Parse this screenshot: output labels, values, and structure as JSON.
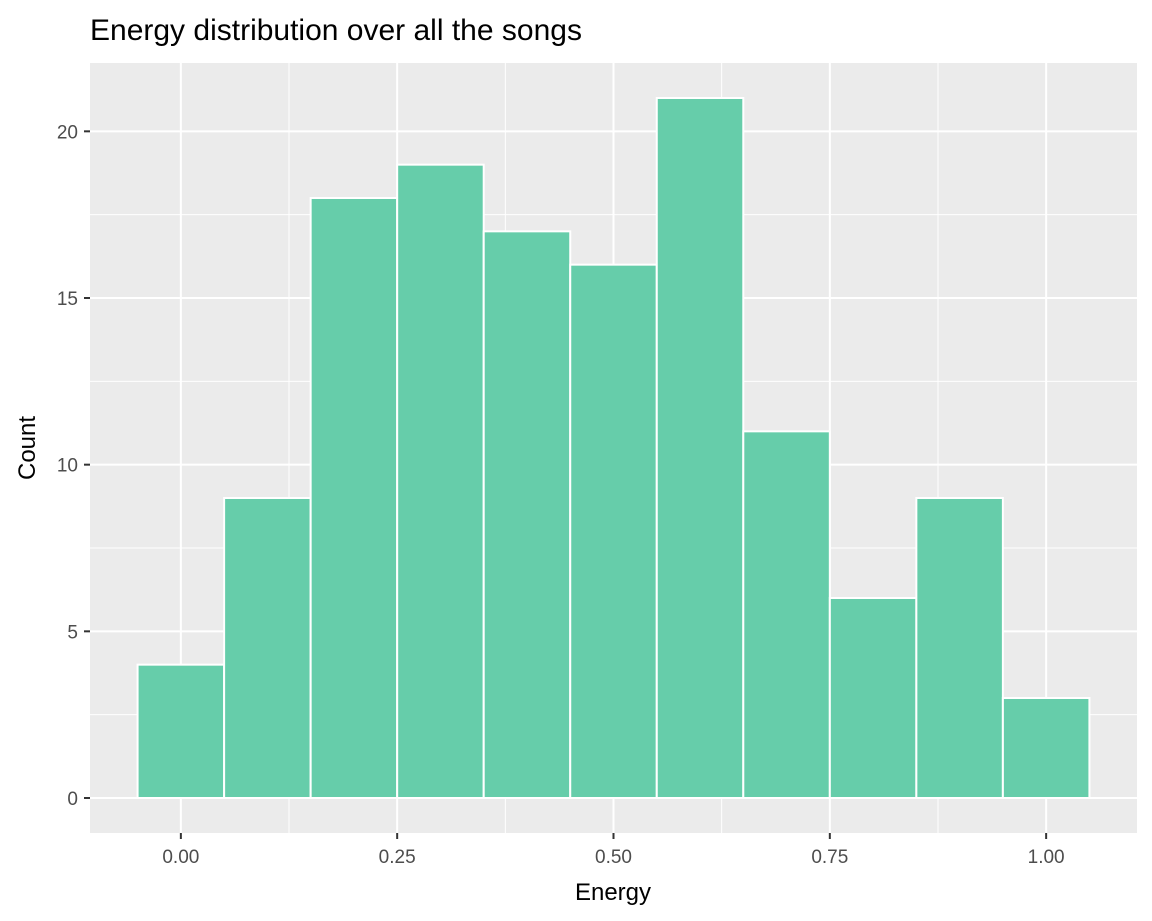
{
  "chart_data": {
    "type": "histogram",
    "title": "Energy distribution over all the songs",
    "xlabel": "Energy",
    "ylabel": "Count",
    "bin_width": 0.1,
    "bins": [
      {
        "start": -0.05,
        "end": 0.05,
        "count": 4
      },
      {
        "start": 0.05,
        "end": 0.15,
        "count": 9
      },
      {
        "start": 0.15,
        "end": 0.25,
        "count": 18
      },
      {
        "start": 0.25,
        "end": 0.35,
        "count": 19
      },
      {
        "start": 0.35,
        "end": 0.45,
        "count": 17
      },
      {
        "start": 0.45,
        "end": 0.55,
        "count": 16
      },
      {
        "start": 0.55,
        "end": 0.65,
        "count": 21
      },
      {
        "start": 0.65,
        "end": 0.75,
        "count": 11
      },
      {
        "start": 0.75,
        "end": 0.85,
        "count": 6
      },
      {
        "start": 0.85,
        "end": 0.95,
        "count": 9
      },
      {
        "start": 0.95,
        "end": 1.05,
        "count": 3
      }
    ],
    "xlim": [
      -0.105,
      1.105
    ],
    "ylim": [
      -1.05,
      22.05
    ],
    "x_ticks": [
      0,
      0.25,
      0.5,
      0.75,
      1
    ],
    "x_tick_labels": [
      "0.00",
      "0.25",
      "0.50",
      "0.75",
      "1.00"
    ],
    "y_ticks": [
      0,
      5,
      10,
      15,
      20
    ],
    "y_tick_labels": [
      "0",
      "5",
      "10",
      "15",
      "20"
    ],
    "grid": true,
    "legend": "none",
    "colors": {
      "bar_fill": "#66cdaa",
      "bar_outline": "#ffffff",
      "panel_background": "#ebebeb",
      "grid": "#ffffff",
      "tick_text": "#4d4d4d",
      "text": "#000000"
    }
  }
}
